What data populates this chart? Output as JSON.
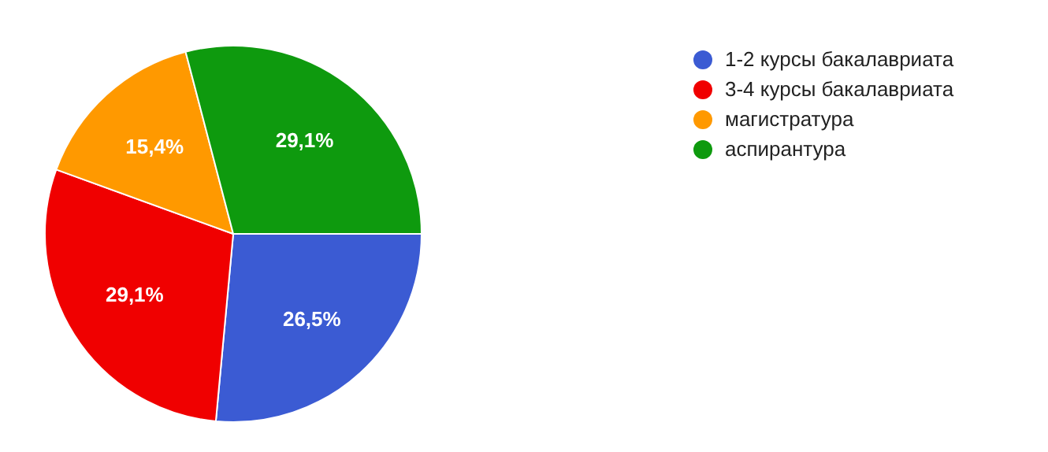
{
  "chart_data": {
    "type": "pie",
    "categories": [
      "1-2 курсы бакалавриата",
      "3-4 курсы бакалавриата",
      "магистратура",
      "аспирантура"
    ],
    "values": [
      26.5,
      29.1,
      15.4,
      29.1
    ],
    "value_labels": [
      "26,5%",
      "29,1%",
      "15,4%",
      "29,1%"
    ],
    "colors": [
      "#3b5bd3",
      "#f00000",
      "#ff9900",
      "#0e9a0e"
    ],
    "legend": "top right"
  }
}
